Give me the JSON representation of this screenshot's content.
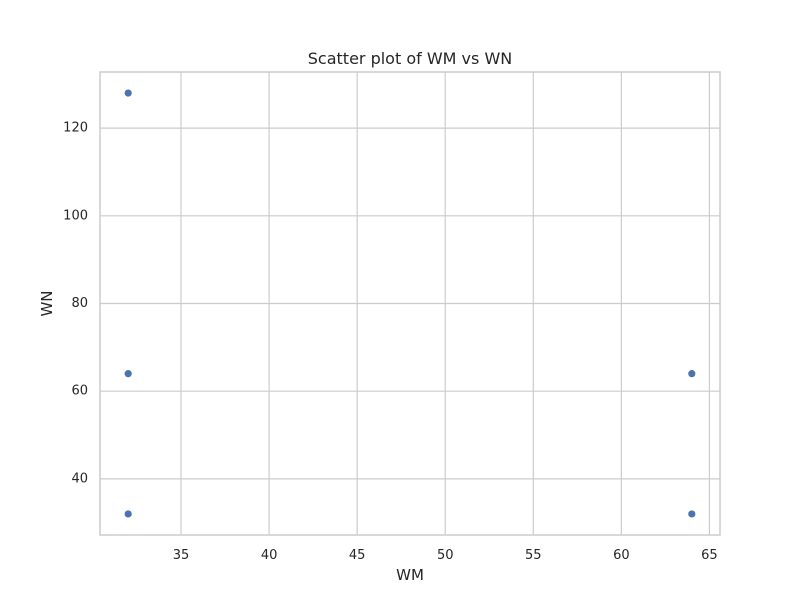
{
  "chart_data": {
    "type": "scatter",
    "title": "Scatter plot of WM vs WN",
    "xlabel": "WM",
    "ylabel": "WN",
    "x": [
      32,
      32,
      32,
      64,
      64
    ],
    "y": [
      128,
      64,
      32,
      64,
      32
    ],
    "xlim": [
      30.4,
      65.6
    ],
    "ylim": [
      27.2,
      132.8
    ],
    "xticks": [
      35,
      40,
      45,
      50,
      55,
      60,
      65
    ],
    "yticks": [
      40,
      60,
      80,
      100,
      120
    ],
    "grid": true,
    "marker_color": "#4c72b0",
    "grid_color": "#cccccc"
  }
}
